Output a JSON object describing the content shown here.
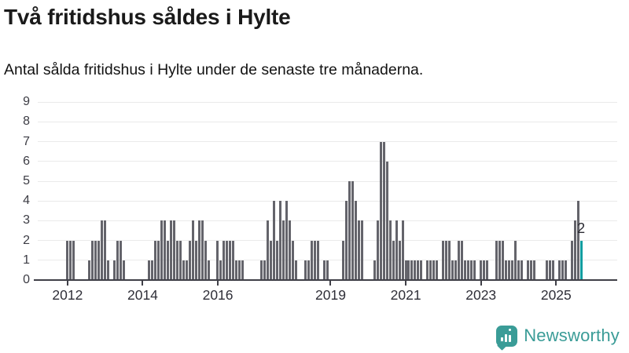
{
  "header": {
    "title": "Två fritidshus såldes i Hylte",
    "subtitle": "Antal sålda fritidshus i Hylte under de senaste tre månaderna."
  },
  "chart_data": {
    "type": "bar",
    "title": "Två fritidshus såldes i Hylte",
    "subtitle": "Antal sålda fritidshus i Hylte under de senaste tre månaderna.",
    "x_unit": "month",
    "x_start": "2011-04",
    "x_end": "2025-09",
    "values": [
      0,
      0,
      0,
      0,
      0,
      0,
      0,
      0,
      0,
      2,
      2,
      2,
      0,
      0,
      0,
      0,
      1,
      2,
      2,
      2,
      3,
      3,
      1,
      0,
      1,
      2,
      2,
      1,
      0,
      0,
      0,
      0,
      0,
      0,
      0,
      1,
      1,
      2,
      2,
      3,
      3,
      2,
      3,
      3,
      2,
      2,
      1,
      1,
      2,
      3,
      2,
      3,
      3,
      2,
      1,
      0,
      0,
      2,
      1,
      2,
      2,
      2,
      2,
      1,
      1,
      1,
      0,
      0,
      0,
      0,
      0,
      1,
      1,
      3,
      2,
      4,
      2,
      4,
      3,
      4,
      3,
      2,
      1,
      0,
      0,
      1,
      1,
      2,
      2,
      2,
      0,
      1,
      1,
      0,
      0,
      0,
      0,
      2,
      4,
      5,
      5,
      4,
      3,
      3,
      0,
      0,
      0,
      1,
      3,
      7,
      7,
      6,
      3,
      2,
      3,
      2,
      3,
      1,
      1,
      1,
      1,
      1,
      1,
      0,
      1,
      1,
      1,
      1,
      0,
      2,
      2,
      2,
      1,
      1,
      2,
      2,
      1,
      1,
      1,
      1,
      0,
      1,
      1,
      1,
      0,
      0,
      2,
      2,
      2,
      1,
      1,
      1,
      2,
      1,
      1,
      0,
      1,
      1,
      1,
      0,
      0,
      0,
      1,
      1,
      1,
      0,
      1,
      1,
      1,
      0,
      2,
      3,
      4,
      2
    ],
    "highlight_index": 173,
    "highlight_value_label": "2",
    "ylim": [
      0,
      9
    ],
    "yticks": [
      0,
      1,
      2,
      3,
      4,
      5,
      6,
      7,
      8,
      9
    ],
    "xticks": [
      {
        "label": "2012",
        "month_index": 9
      },
      {
        "label": "2014",
        "month_index": 33
      },
      {
        "label": "2016",
        "month_index": 57
      },
      {
        "label": "2019",
        "month_index": 93
      },
      {
        "label": "2021",
        "month_index": 117
      },
      {
        "label": "2023",
        "month_index": 141
      },
      {
        "label": "2025",
        "month_index": 165
      }
    ],
    "trailing_empty_months": 11,
    "grid": true,
    "legend": "none",
    "bar_color": "#64646b",
    "highlight_color": "#0d9da0",
    "axis_color": "#3f3f47",
    "gridline_color": "#eaeaea"
  },
  "footer": {
    "brand": "Newsworthy",
    "brand_color": "#3a9c97",
    "logo_icon": "bar-chart-speech-bubble-icon"
  }
}
